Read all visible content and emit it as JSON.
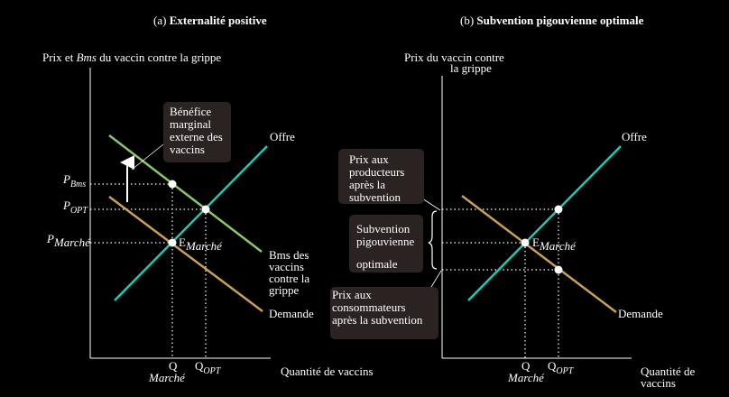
{
  "colors": {
    "supply": "#1fc9b8",
    "demand": "#c8a05a",
    "bms": "#8bc86a",
    "axis": "#ffffff",
    "box": "#2b2222"
  },
  "panel_a": {
    "title_prefix": "(a) ",
    "title_bold": "Externalité positive",
    "y_axis_label_1": "Prix et ",
    "y_axis_label_italic": "Bms",
    "y_axis_label_2": " du vaccin contre la grippe",
    "x_axis_label": "Quantité  de vaccins",
    "box_label": [
      "Bénéfice",
      "marginal",
      "externe  des",
      "vaccins"
    ],
    "supply_label": "Offre",
    "demand_label": "Demande",
    "bms_label": [
      "Bms des",
      "vaccins",
      "contre la",
      "grippe"
    ],
    "p_bms": {
      "main": "P",
      "sub": "Bms"
    },
    "p_opt": {
      "main": "P",
      "sub": "OPT"
    },
    "p_marche": {
      "main": "P",
      "sub": "Marché"
    },
    "e_marche": {
      "main": "E",
      "sub": "Marché"
    },
    "q_marche": {
      "main": "Q",
      "sub": "Marché"
    },
    "q_opt": {
      "main": "Q",
      "sub": "OPT"
    }
  },
  "panel_b": {
    "title_prefix": "(b) ",
    "title_bold": "Subvention pigouvienne optimale",
    "y_axis_label": [
      "Prix du vaccin contre",
      "la grippe"
    ],
    "x_axis_label": [
      "Quantité  de",
      "vaccins"
    ],
    "supply_label": "Offre",
    "demand_label": "Demande",
    "producers_box": [
      "Prix aux",
      "producteurs",
      "après la",
      "subvention"
    ],
    "subsidy_box": [
      "Subvention",
      "pigouvienne",
      "optimale"
    ],
    "consumers_box": [
      "Prix aux",
      "consommateurs",
      "après la subvention"
    ],
    "e_marche": {
      "main": "E",
      "sub": "Marché"
    },
    "q_marche": {
      "main": "Q",
      "sub": "Marché"
    },
    "q_opt": {
      "main": "Q",
      "sub": "OPT"
    }
  }
}
